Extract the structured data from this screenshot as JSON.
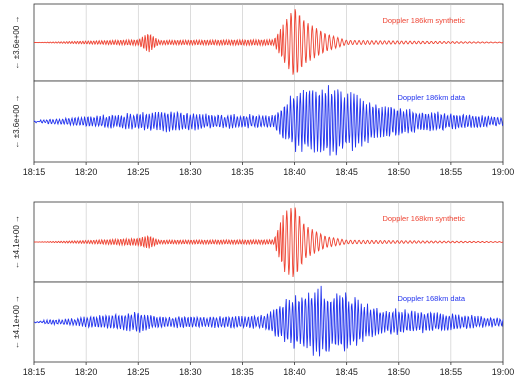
{
  "chart_data": {
    "type": "line",
    "x_range": [
      "18:15",
      "19:00"
    ],
    "x_ticks": [
      "18:15",
      "18:20",
      "18:25",
      "18:30",
      "18:35",
      "18:40",
      "18:45",
      "18:50",
      "18:55",
      "19:00"
    ],
    "panels": [
      {
        "group": 1,
        "ylabel": "← ±3.6e+00 →",
        "series": {
          "label": "Doppler 186km synthetic",
          "color": "#ee4433",
          "kind": "synthetic",
          "onset_time": "18:39",
          "amplitude_shape": [
            {
              "t": "18:15",
              "a": 0.0
            },
            {
              "t": "18:20",
              "a": 0.04
            },
            {
              "t": "18:25",
              "a": 0.08
            },
            {
              "t": "18:26",
              "a": 0.28
            },
            {
              "t": "18:27",
              "a": 0.06
            },
            {
              "t": "18:38",
              "a": 0.08
            },
            {
              "t": "18:39",
              "a": 0.55
            },
            {
              "t": "18:40",
              "a": 1.0
            },
            {
              "t": "18:41",
              "a": 0.6
            },
            {
              "t": "18:43",
              "a": 0.25
            },
            {
              "t": "18:45",
              "a": 0.06
            },
            {
              "t": "19:00",
              "a": 0.01
            }
          ]
        }
      },
      {
        "group": 1,
        "ylabel": "← ±3.6e+00 →",
        "series": {
          "label": "Doppler 186km data",
          "color": "#2233ee",
          "kind": "data",
          "amplitude_shape": [
            {
              "t": "18:15",
              "a": 0.02
            },
            {
              "t": "18:18",
              "a": 0.1
            },
            {
              "t": "18:22",
              "a": 0.18
            },
            {
              "t": "18:28",
              "a": 0.3
            },
            {
              "t": "18:32",
              "a": 0.2
            },
            {
              "t": "18:38",
              "a": 0.18
            },
            {
              "t": "18:40",
              "a": 0.85
            },
            {
              "t": "18:43",
              "a": 1.0
            },
            {
              "t": "18:45",
              "a": 0.9
            },
            {
              "t": "18:48",
              "a": 0.5
            },
            {
              "t": "18:52",
              "a": 0.3
            },
            {
              "t": "19:00",
              "a": 0.12
            }
          ]
        }
      },
      {
        "group": 2,
        "ylabel": "← ±4.1e+00 →",
        "series": {
          "label": "Doppler 168km synthetic",
          "color": "#ee4433",
          "kind": "synthetic",
          "onset_time": "18:39",
          "amplitude_shape": [
            {
              "t": "18:15",
              "a": 0.0
            },
            {
              "t": "18:20",
              "a": 0.04
            },
            {
              "t": "18:25",
              "a": 0.1
            },
            {
              "t": "18:26",
              "a": 0.18
            },
            {
              "t": "18:27",
              "a": 0.05
            },
            {
              "t": "18:38",
              "a": 0.06
            },
            {
              "t": "18:39",
              "a": 0.8
            },
            {
              "t": "18:40",
              "a": 1.0
            },
            {
              "t": "18:41",
              "a": 0.45
            },
            {
              "t": "18:43",
              "a": 0.15
            },
            {
              "t": "18:45",
              "a": 0.05
            },
            {
              "t": "19:00",
              "a": 0.01
            }
          ]
        }
      },
      {
        "group": 2,
        "ylabel": "← ±4.1e+00 →",
        "series": {
          "label": "Doppler 168km data",
          "color": "#2233ee",
          "kind": "data",
          "amplitude_shape": [
            {
              "t": "18:15",
              "a": 0.02
            },
            {
              "t": "18:18",
              "a": 0.08
            },
            {
              "t": "18:25",
              "a": 0.3
            },
            {
              "t": "18:27",
              "a": 0.15
            },
            {
              "t": "18:32",
              "a": 0.15
            },
            {
              "t": "18:37",
              "a": 0.2
            },
            {
              "t": "18:40",
              "a": 0.8
            },
            {
              "t": "18:42",
              "a": 1.0
            },
            {
              "t": "18:45",
              "a": 0.85
            },
            {
              "t": "18:48",
              "a": 0.4
            },
            {
              "t": "18:55",
              "a": 0.25
            },
            {
              "t": "19:00",
              "a": 0.1
            }
          ]
        }
      }
    ],
    "grid": true
  }
}
